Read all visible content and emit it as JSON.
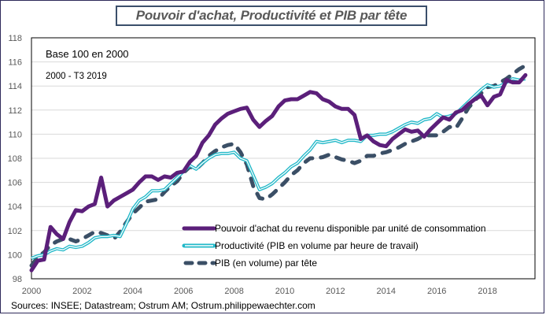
{
  "title": "Pouvoir d'achat, Productivité et PIB par tête",
  "source": "Sources: INSEE; Datastream; Ostrum AM; Ostrum.philippewaechter.com",
  "chart_data": {
    "type": "line",
    "title": "Pouvoir d'achat, Productivité et PIB par tête",
    "annotations": [
      "Base 100 en 2000",
      "2000 - T3 2019"
    ],
    "xlabel": "",
    "ylabel": "",
    "xlim": [
      2000,
      2019.9
    ],
    "ylim": [
      98,
      118
    ],
    "grid": true,
    "legend_position": "bottom-right",
    "x_ticks": [
      "2000",
      "2002",
      "2004",
      "2006",
      "2008",
      "2010",
      "2012",
      "2014",
      "2016",
      "2018"
    ],
    "y_ticks": [
      "98",
      "100",
      "102",
      "104",
      "106",
      "108",
      "110",
      "112",
      "114",
      "116",
      "118"
    ],
    "x": [
      2000.0,
      2000.25,
      2000.5,
      2000.75,
      2001.0,
      2001.25,
      2001.5,
      2001.75,
      2002.0,
      2002.25,
      2002.5,
      2002.75,
      2003.0,
      2003.25,
      2003.5,
      2003.75,
      2004.0,
      2004.25,
      2004.5,
      2004.75,
      2005.0,
      2005.25,
      2005.5,
      2005.75,
      2006.0,
      2006.25,
      2006.5,
      2006.75,
      2007.0,
      2007.25,
      2007.5,
      2007.75,
      2008.0,
      2008.25,
      2008.5,
      2008.75,
      2009.0,
      2009.25,
      2009.5,
      2009.75,
      2010.0,
      2010.25,
      2010.5,
      2010.75,
      2011.0,
      2011.25,
      2011.5,
      2011.75,
      2012.0,
      2012.25,
      2012.5,
      2012.75,
      2013.0,
      2013.25,
      2013.5,
      2013.75,
      2014.0,
      2014.25,
      2014.5,
      2014.75,
      2015.0,
      2015.25,
      2015.5,
      2015.75,
      2016.0,
      2016.25,
      2016.5,
      2016.75,
      2017.0,
      2017.25,
      2017.5,
      2017.75,
      2018.0,
      2018.25,
      2018.5,
      2018.75,
      2019.0,
      2019.25,
      2019.5
    ],
    "series": [
      {
        "name": "Pouvoir d'achat du revenu disponible par unité de consommation",
        "color": "#5b1f7a",
        "style": "solid-thick",
        "values": [
          98.7,
          99.5,
          99.6,
          102.3,
          101.7,
          101.3,
          102.7,
          103.7,
          103.6,
          104.0,
          104.2,
          106.4,
          104.0,
          104.5,
          104.8,
          105.1,
          105.4,
          106.0,
          106.5,
          106.5,
          106.2,
          106.5,
          106.4,
          106.8,
          106.9,
          107.7,
          108.2,
          109.3,
          109.9,
          110.8,
          111.3,
          111.7,
          111.9,
          112.1,
          112.2,
          111.2,
          110.6,
          111.1,
          111.5,
          112.3,
          112.8,
          112.9,
          112.9,
          113.2,
          113.5,
          113.4,
          112.9,
          112.7,
          112.3,
          112.1,
          112.1,
          111.6,
          109.6,
          109.9,
          109.4,
          109.1,
          109.0,
          109.6,
          110.0,
          110.4,
          110.2,
          110.3,
          109.8,
          110.4,
          110.9,
          111.4,
          111.2,
          111.8,
          112.0,
          112.5,
          112.9,
          113.2,
          112.4,
          113.1,
          113.3,
          114.5,
          114.3,
          114.3,
          114.9
        ]
      },
      {
        "name": "Productivité (PIB en volume par heure de travail)",
        "color": "#21b8c8",
        "style": "double",
        "values": [
          99.7,
          99.9,
          100.0,
          100.3,
          100.5,
          100.4,
          100.7,
          100.6,
          100.7,
          101.0,
          101.4,
          101.5,
          101.5,
          101.6,
          101.5,
          102.6,
          103.8,
          104.5,
          104.8,
          105.3,
          105.3,
          105.4,
          105.9,
          106.4,
          106.9,
          107.4,
          107.1,
          107.6,
          108.0,
          108.3,
          108.4,
          108.4,
          108.5,
          108.0,
          107.8,
          106.6,
          105.4,
          105.6,
          105.9,
          106.4,
          106.8,
          107.3,
          107.6,
          108.2,
          108.7,
          109.4,
          109.3,
          109.4,
          109.5,
          109.3,
          109.5,
          109.5,
          109.4,
          109.9,
          109.9,
          110.0,
          110.0,
          110.2,
          110.5,
          110.8,
          111.0,
          110.9,
          111.2,
          111.3,
          111.7,
          111.4,
          111.5,
          111.7,
          112.2,
          112.7,
          113.2,
          113.7,
          114.1,
          113.9,
          114.0,
          114.3,
          114.6,
          114.5,
          114.6
        ]
      },
      {
        "name": "PIB (en volume) par tête",
        "color": "#3b4f66",
        "style": "dashed",
        "values": [
          99.1,
          99.8,
          100.2,
          100.8,
          101.1,
          101.3,
          101.3,
          101.1,
          101.3,
          101.6,
          101.9,
          101.8,
          101.6,
          101.3,
          101.9,
          102.7,
          103.4,
          103.9,
          104.4,
          104.5,
          104.6,
          105.2,
          105.7,
          106.1,
          106.8,
          107.3,
          107.1,
          107.6,
          108.2,
          108.6,
          108.9,
          109.1,
          109.2,
          108.5,
          107.5,
          105.7,
          104.7,
          104.6,
          105.0,
          105.5,
          106.0,
          106.6,
          107.0,
          107.6,
          108.0,
          108.0,
          108.1,
          108.3,
          108.1,
          107.9,
          107.8,
          107.6,
          107.8,
          108.2,
          108.2,
          108.4,
          108.5,
          108.7,
          108.9,
          109.2,
          109.4,
          109.6,
          109.9,
          109.9,
          109.9,
          110.2,
          110.6,
          110.5,
          111.3,
          112.2,
          112.8,
          113.4,
          113.9,
          114.0,
          114.3,
          114.6,
          115.0,
          115.4,
          115.7
        ]
      }
    ]
  }
}
